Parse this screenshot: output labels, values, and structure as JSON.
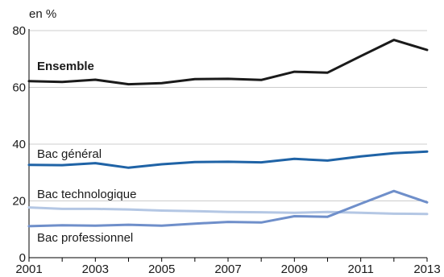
{
  "chart_data": {
    "type": "line",
    "unit_label": "en %",
    "x": [
      2001,
      2002,
      2003,
      2004,
      2005,
      2006,
      2007,
      2008,
      2009,
      2010,
      2011,
      2012,
      2013
    ],
    "xticks": [
      "2001",
      "2003",
      "2005",
      "2007",
      "2009",
      "2011",
      "2013"
    ],
    "yticks": [
      "0",
      "20",
      "40",
      "60",
      "80"
    ],
    "xlim": [
      2001,
      2013
    ],
    "ylim": [
      0,
      80
    ],
    "grid": true,
    "series": [
      {
        "name": "Ensemble",
        "color": "#1a1a1a",
        "bold_label": true,
        "values": [
          62.2,
          61.9,
          62.7,
          61.1,
          61.5,
          62.9,
          63.0,
          62.6,
          65.5,
          65.2,
          71.0,
          76.7,
          73.2
        ]
      },
      {
        "name": "Bac général",
        "color": "#1f63a6",
        "bold_label": false,
        "values": [
          32.7,
          32.6,
          33.3,
          31.7,
          32.9,
          33.7,
          33.8,
          33.6,
          34.8,
          34.2,
          35.7,
          36.8,
          37.4
        ]
      },
      {
        "name": "Bac technologique",
        "color": "#b4c7e4",
        "bold_label": false,
        "values": [
          17.7,
          17.2,
          17.2,
          17.0,
          16.6,
          16.4,
          16.1,
          16.0,
          15.8,
          16.1,
          15.8,
          15.5,
          15.4
        ]
      },
      {
        "name": "Bac professionnel",
        "color": "#6f8fca",
        "bold_label": false,
        "values": [
          11.1,
          11.4,
          11.3,
          11.6,
          11.3,
          12.0,
          12.6,
          12.4,
          14.6,
          14.4,
          19.0,
          23.5,
          19.5
        ]
      }
    ]
  }
}
